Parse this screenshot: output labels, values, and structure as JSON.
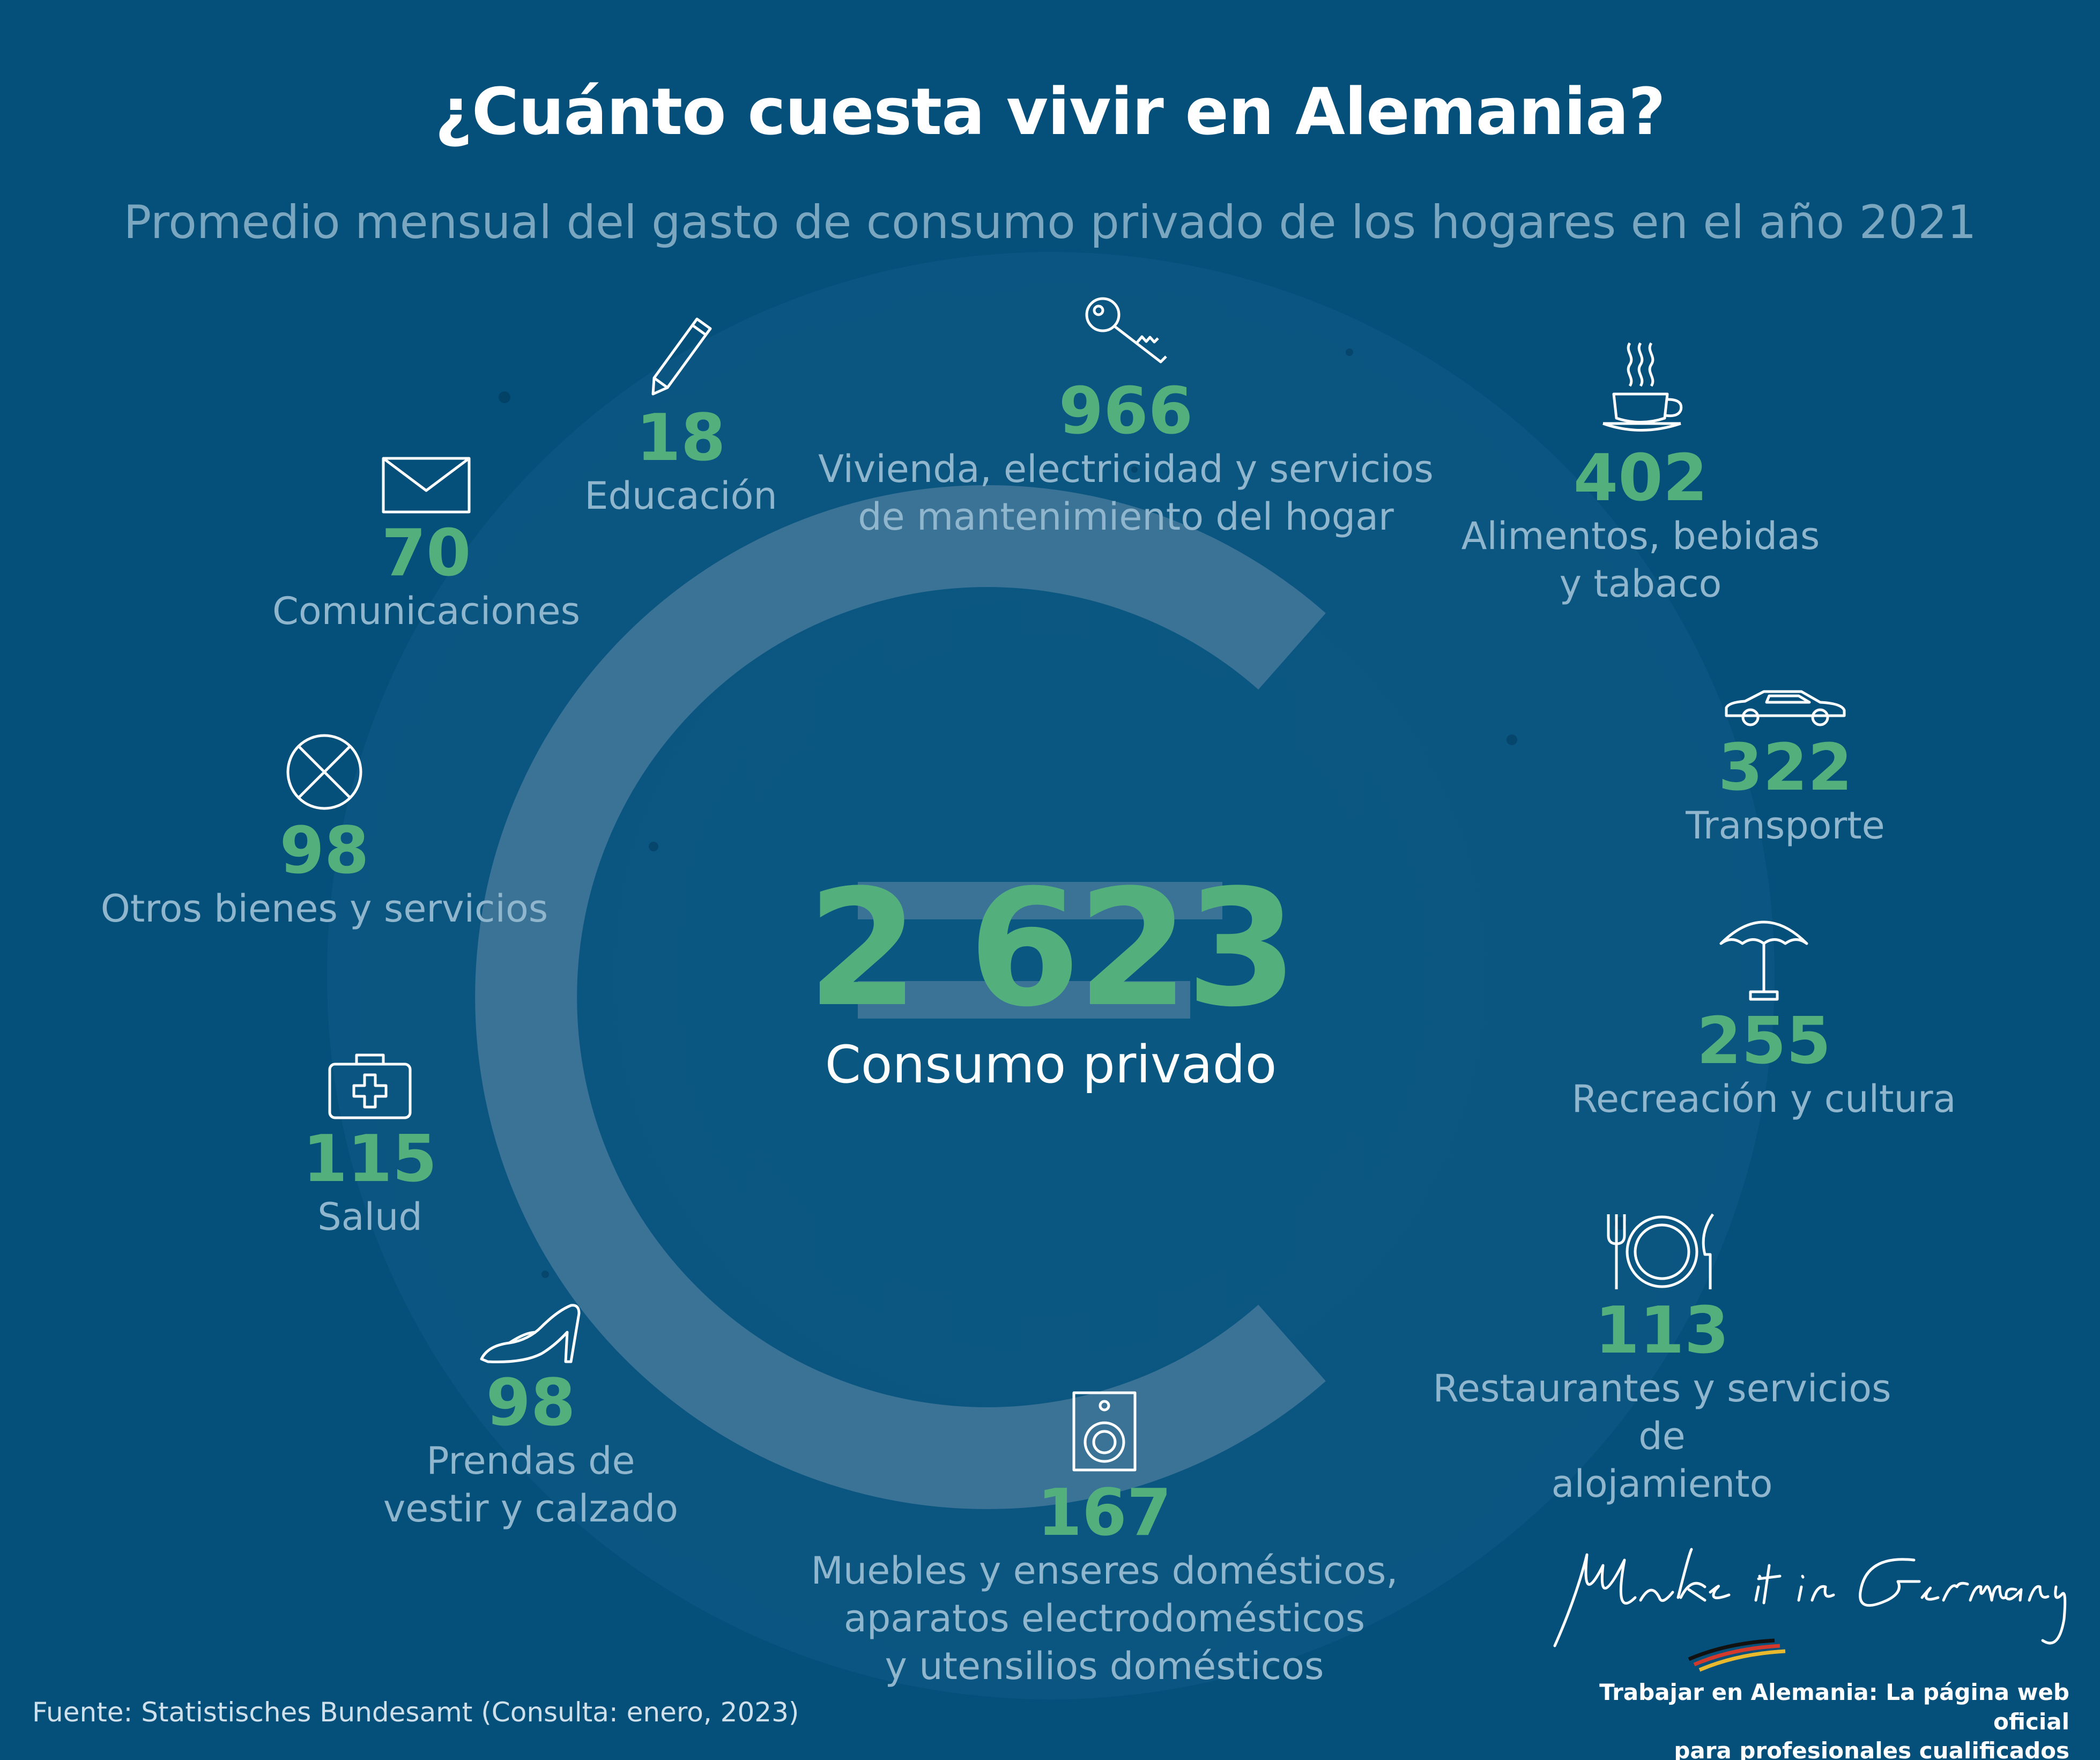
{
  "title": "¿Cuánto cuesta vivir en Alemania?",
  "subtitle": "Promedio mensual del gasto de consumo privado de los hogares en el año 2021",
  "total": {
    "value": "2 623",
    "label": "Consumo privado"
  },
  "categories": [
    {
      "value": "18",
      "label": "Educación",
      "icon": "pencil-icon"
    },
    {
      "value": "966",
      "label": "Vivienda, electricidad y servicios\nde mantenimiento del hogar",
      "icon": "key-icon"
    },
    {
      "value": "402",
      "label": "Alimentos, bebidas\ny tabaco",
      "icon": "coffee-cup-icon"
    },
    {
      "value": "70",
      "label": "Comunicaciones",
      "icon": "envelope-icon"
    },
    {
      "value": "322",
      "label": "Transporte",
      "icon": "car-icon"
    },
    {
      "value": "98",
      "label": "Otros bienes y servicios",
      "icon": "crossed-circle-icon"
    },
    {
      "value": "255",
      "label": "Recreación y cultura",
      "icon": "parasol-icon"
    },
    {
      "value": "115",
      "label": "Salud",
      "icon": "first-aid-kit-icon"
    },
    {
      "value": "113",
      "label": "Restaurantes y servicios de\nalojamiento",
      "icon": "cutlery-plate-icon"
    },
    {
      "value": "98",
      "label": "Prendas de\nvestir y calzado",
      "icon": "high-heel-shoe-icon"
    },
    {
      "value": "167",
      "label": "Muebles y enseres domésticos,\naparatos electrodomésticos\ny utensilios domésticos",
      "icon": "speaker-icon"
    }
  ],
  "source": "Fuente:  Statistisches Bundesamt (Consulta: enero, 2023)",
  "brand": {
    "logo_text": "Make it in Germany",
    "note": "Trabajar en Alemania: La página web oficial\npara profesionales cualificados"
  },
  "colors": {
    "background": "#04507a",
    "accent": "#53b07d",
    "label": "#8fb6cc",
    "euro": "#3b7396"
  }
}
